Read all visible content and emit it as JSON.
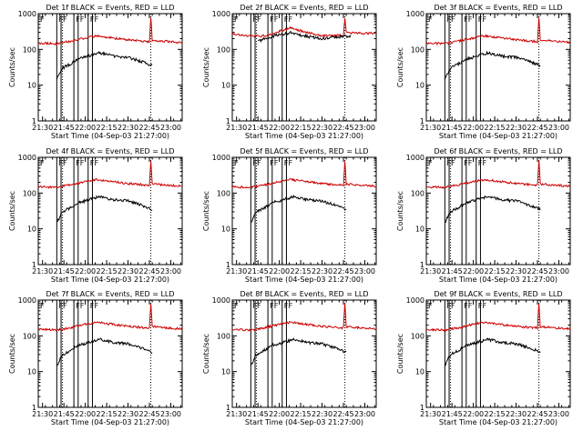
{
  "chart_data": {
    "type": "line",
    "layout": "3x3 grid",
    "y_scale": "log",
    "ylim": [
      1,
      1000
    ],
    "ylabel": "Counts/sec",
    "xlabel": "Start Time (04-Sep-03 21:27:00)",
    "x_range": [
      "21:27",
      "23:08"
    ],
    "x_ticks": [
      "21:30",
      "21:45",
      "22:00",
      "22:15",
      "22:30",
      "22:45",
      "23:00"
    ],
    "y_ticks": [
      "1",
      "10",
      "100",
      "1000"
    ],
    "marker_text": "F",
    "vertical_markers": [
      "21:40",
      "21:43",
      "21:52",
      "21:55",
      "22:02",
      "22:05"
    ],
    "dotted_markers": [
      "21:44",
      "22:46"
    ],
    "series": [
      {
        "name": "Events",
        "color": "#000000"
      },
      {
        "name": "LLD",
        "color": "#cc0000"
      }
    ],
    "panels": [
      {
        "title": "Det 1f BLACK = Events, RED = LLD",
        "events": [
          [
            "21:40",
            15
          ],
          [
            "21:44",
            30
          ],
          [
            "21:50",
            40
          ],
          [
            "21:55",
            55
          ],
          [
            "22:00",
            60
          ],
          [
            "22:05",
            70
          ],
          [
            "22:10",
            80
          ],
          [
            "22:20",
            65
          ],
          [
            "22:30",
            60
          ],
          [
            "22:40",
            45
          ],
          [
            "22:47",
            35
          ]
        ],
        "lld": [
          [
            "21:27",
            150
          ],
          [
            "21:40",
            145
          ],
          [
            "21:50",
            170
          ],
          [
            "22:00",
            210
          ],
          [
            "22:08",
            240
          ],
          [
            "22:15",
            220
          ],
          [
            "22:30",
            185
          ],
          [
            "22:45",
            165
          ],
          [
            "22:46",
            800
          ],
          [
            "22:47",
            180
          ],
          [
            "23:08",
            155
          ]
        ]
      },
      {
        "title": "Det 2f BLACK = Events, RED = LLD",
        "events": [
          [
            "21:45",
            170
          ],
          [
            "21:50",
            200
          ],
          [
            "22:00",
            260
          ],
          [
            "22:08",
            290
          ],
          [
            "22:15",
            250
          ],
          [
            "22:30",
            200
          ],
          [
            "22:40",
            220
          ],
          [
            "22:50",
            240
          ]
        ],
        "lld": [
          [
            "21:27",
            280
          ],
          [
            "21:40",
            230
          ],
          [
            "21:50",
            240
          ],
          [
            "22:00",
            320
          ],
          [
            "22:08",
            400
          ],
          [
            "22:15",
            330
          ],
          [
            "22:30",
            240
          ],
          [
            "22:45",
            250
          ],
          [
            "22:46",
            800
          ],
          [
            "22:47",
            290
          ],
          [
            "23:08",
            280
          ]
        ]
      },
      {
        "title": "Det 3f BLACK = Events, RED = LLD",
        "events": [
          [
            "21:40",
            15
          ],
          [
            "21:44",
            30
          ],
          [
            "21:50",
            40
          ],
          [
            "21:55",
            55
          ],
          [
            "22:00",
            60
          ],
          [
            "22:05",
            70
          ],
          [
            "22:10",
            80
          ],
          [
            "22:20",
            65
          ],
          [
            "22:30",
            60
          ],
          [
            "22:40",
            45
          ],
          [
            "22:47",
            35
          ]
        ],
        "lld": [
          [
            "21:27",
            150
          ],
          [
            "21:40",
            145
          ],
          [
            "21:50",
            170
          ],
          [
            "22:00",
            210
          ],
          [
            "22:08",
            240
          ],
          [
            "22:15",
            220
          ],
          [
            "22:30",
            185
          ],
          [
            "22:45",
            165
          ],
          [
            "22:46",
            800
          ],
          [
            "22:47",
            180
          ],
          [
            "23:08",
            155
          ]
        ]
      },
      {
        "title": "Det 4f BLACK = Events, RED = LLD",
        "events": [
          [
            "21:40",
            15
          ],
          [
            "21:44",
            30
          ],
          [
            "21:50",
            40
          ],
          [
            "21:55",
            55
          ],
          [
            "22:00",
            60
          ],
          [
            "22:05",
            70
          ],
          [
            "22:10",
            80
          ],
          [
            "22:20",
            65
          ],
          [
            "22:30",
            60
          ],
          [
            "22:40",
            45
          ],
          [
            "22:47",
            35
          ]
        ],
        "lld": [
          [
            "21:27",
            150
          ],
          [
            "21:40",
            145
          ],
          [
            "21:50",
            170
          ],
          [
            "22:00",
            210
          ],
          [
            "22:08",
            240
          ],
          [
            "22:15",
            220
          ],
          [
            "22:30",
            185
          ],
          [
            "22:45",
            165
          ],
          [
            "22:46",
            800
          ],
          [
            "22:47",
            180
          ],
          [
            "23:08",
            155
          ]
        ]
      },
      {
        "title": "Det 5f BLACK = Events, RED = LLD",
        "events": [
          [
            "21:40",
            15
          ],
          [
            "21:44",
            30
          ],
          [
            "21:50",
            40
          ],
          [
            "21:55",
            55
          ],
          [
            "22:00",
            60
          ],
          [
            "22:05",
            70
          ],
          [
            "22:10",
            80
          ],
          [
            "22:20",
            65
          ],
          [
            "22:30",
            60
          ],
          [
            "22:40",
            45
          ],
          [
            "22:47",
            35
          ]
        ],
        "lld": [
          [
            "21:27",
            150
          ],
          [
            "21:40",
            145
          ],
          [
            "21:50",
            170
          ],
          [
            "22:00",
            210
          ],
          [
            "22:08",
            240
          ],
          [
            "22:15",
            220
          ],
          [
            "22:30",
            185
          ],
          [
            "22:45",
            165
          ],
          [
            "22:46",
            800
          ],
          [
            "22:47",
            180
          ],
          [
            "23:08",
            155
          ]
        ]
      },
      {
        "title": "Det 6f BLACK = Events, RED = LLD",
        "events": [
          [
            "21:40",
            15
          ],
          [
            "21:44",
            30
          ],
          [
            "21:50",
            40
          ],
          [
            "21:55",
            55
          ],
          [
            "22:00",
            60
          ],
          [
            "22:05",
            70
          ],
          [
            "22:10",
            80
          ],
          [
            "22:20",
            65
          ],
          [
            "22:30",
            60
          ],
          [
            "22:40",
            45
          ],
          [
            "22:47",
            35
          ]
        ],
        "lld": [
          [
            "21:27",
            150
          ],
          [
            "21:40",
            145
          ],
          [
            "21:50",
            170
          ],
          [
            "22:00",
            210
          ],
          [
            "22:08",
            240
          ],
          [
            "22:15",
            220
          ],
          [
            "22:30",
            185
          ],
          [
            "22:45",
            165
          ],
          [
            "22:46",
            800
          ],
          [
            "22:47",
            180
          ],
          [
            "23:08",
            155
          ]
        ]
      },
      {
        "title": "Det 7f BLACK = Events, RED = LLD",
        "events": [
          [
            "21:40",
            15
          ],
          [
            "21:44",
            30
          ],
          [
            "21:50",
            40
          ],
          [
            "21:55",
            55
          ],
          [
            "22:00",
            60
          ],
          [
            "22:05",
            70
          ],
          [
            "22:10",
            80
          ],
          [
            "22:20",
            65
          ],
          [
            "22:30",
            60
          ],
          [
            "22:40",
            45
          ],
          [
            "22:47",
            35
          ]
        ],
        "lld": [
          [
            "21:27",
            150
          ],
          [
            "21:40",
            145
          ],
          [
            "21:50",
            170
          ],
          [
            "22:00",
            210
          ],
          [
            "22:08",
            240
          ],
          [
            "22:15",
            220
          ],
          [
            "22:30",
            185
          ],
          [
            "22:45",
            165
          ],
          [
            "22:46",
            800
          ],
          [
            "22:47",
            180
          ],
          [
            "23:08",
            155
          ]
        ]
      },
      {
        "title": "Det 8f BLACK = Events, RED = LLD",
        "events": [
          [
            "21:40",
            15
          ],
          [
            "21:44",
            30
          ],
          [
            "21:50",
            40
          ],
          [
            "21:55",
            55
          ],
          [
            "22:00",
            60
          ],
          [
            "22:05",
            70
          ],
          [
            "22:10",
            80
          ],
          [
            "22:20",
            65
          ],
          [
            "22:30",
            60
          ],
          [
            "22:40",
            45
          ],
          [
            "22:47",
            35
          ]
        ],
        "lld": [
          [
            "21:27",
            150
          ],
          [
            "21:40",
            145
          ],
          [
            "21:50",
            170
          ],
          [
            "22:00",
            210
          ],
          [
            "22:08",
            240
          ],
          [
            "22:15",
            220
          ],
          [
            "22:30",
            185
          ],
          [
            "22:45",
            165
          ],
          [
            "22:46",
            800
          ],
          [
            "22:47",
            180
          ],
          [
            "23:08",
            155
          ]
        ]
      },
      {
        "title": "Det 9f BLACK = Events, RED = LLD",
        "events": [
          [
            "21:40",
            15
          ],
          [
            "21:44",
            30
          ],
          [
            "21:50",
            40
          ],
          [
            "21:55",
            55
          ],
          [
            "22:00",
            60
          ],
          [
            "22:05",
            70
          ],
          [
            "22:10",
            80
          ],
          [
            "22:20",
            65
          ],
          [
            "22:30",
            60
          ],
          [
            "22:40",
            45
          ],
          [
            "22:47",
            35
          ]
        ],
        "lld": [
          [
            "21:27",
            150
          ],
          [
            "21:40",
            145
          ],
          [
            "21:50",
            170
          ],
          [
            "22:00",
            210
          ],
          [
            "22:08",
            240
          ],
          [
            "22:15",
            220
          ],
          [
            "22:30",
            185
          ],
          [
            "22:45",
            165
          ],
          [
            "22:46",
            800
          ],
          [
            "22:47",
            180
          ],
          [
            "23:08",
            155
          ]
        ]
      }
    ]
  }
}
